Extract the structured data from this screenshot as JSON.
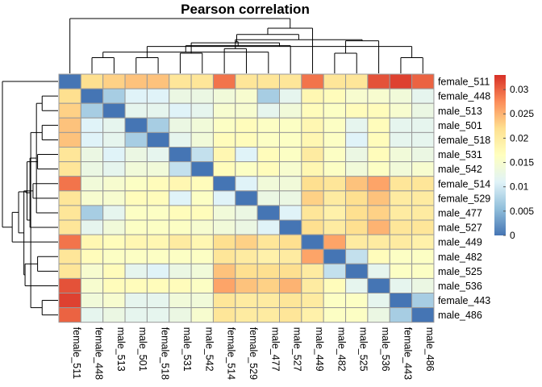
{
  "chart_data": {
    "type": "heatmap",
    "title": "Pearson correlation",
    "rows": [
      "female_511",
      "female_448",
      "male_513",
      "male_501",
      "female_518",
      "male_531",
      "male_542",
      "female_514",
      "female_529",
      "male_477",
      "male_527",
      "male_449",
      "male_482",
      "male_525",
      "male_536",
      "female_443",
      "male_486"
    ],
    "columns": [
      "female_511",
      "female_448",
      "male_513",
      "male_501",
      "female_518",
      "male_531",
      "male_542",
      "female_514",
      "female_529",
      "male_477",
      "male_527",
      "male_449",
      "male_482",
      "male_525",
      "male_536",
      "female_443",
      "male_486"
    ],
    "values": [
      [
        0.0,
        0.022,
        0.023,
        0.024,
        0.024,
        0.021,
        0.021,
        0.029,
        0.021,
        0.021,
        0.021,
        0.029,
        0.021,
        0.021,
        0.031,
        0.032,
        0.03
      ],
      [
        0.022,
        0.0,
        0.007,
        0.011,
        0.011,
        0.013,
        0.013,
        0.014,
        0.015,
        0.007,
        0.012,
        0.018,
        0.017,
        0.015,
        0.015,
        0.014,
        0.012
      ],
      [
        0.023,
        0.007,
        0.0,
        0.012,
        0.012,
        0.011,
        0.012,
        0.015,
        0.015,
        0.012,
        0.014,
        0.017,
        0.016,
        0.017,
        0.017,
        0.015,
        0.013
      ],
      [
        0.024,
        0.011,
        0.012,
        0.0,
        0.007,
        0.013,
        0.014,
        0.016,
        0.017,
        0.016,
        0.016,
        0.018,
        0.016,
        0.012,
        0.017,
        0.012,
        0.012
      ],
      [
        0.024,
        0.011,
        0.012,
        0.007,
        0.0,
        0.012,
        0.014,
        0.017,
        0.017,
        0.016,
        0.016,
        0.018,
        0.016,
        0.011,
        0.017,
        0.012,
        0.012
      ],
      [
        0.021,
        0.013,
        0.011,
        0.013,
        0.012,
        0.0,
        0.009,
        0.018,
        0.011,
        0.017,
        0.016,
        0.02,
        0.016,
        0.013,
        0.017,
        0.014,
        0.013
      ],
      [
        0.021,
        0.013,
        0.012,
        0.014,
        0.014,
        0.009,
        0.0,
        0.017,
        0.016,
        0.017,
        0.015,
        0.018,
        0.016,
        0.014,
        0.016,
        0.014,
        0.015
      ],
      [
        0.029,
        0.014,
        0.015,
        0.016,
        0.017,
        0.018,
        0.017,
        0.0,
        0.011,
        0.014,
        0.014,
        0.022,
        0.021,
        0.024,
        0.026,
        0.021,
        0.021
      ],
      [
        0.021,
        0.015,
        0.015,
        0.017,
        0.017,
        0.011,
        0.016,
        0.011,
        0.0,
        0.013,
        0.013,
        0.023,
        0.02,
        0.022,
        0.024,
        0.02,
        0.02
      ],
      [
        0.021,
        0.007,
        0.012,
        0.016,
        0.016,
        0.017,
        0.017,
        0.014,
        0.013,
        0.0,
        0.011,
        0.021,
        0.019,
        0.022,
        0.023,
        0.02,
        0.02
      ],
      [
        0.021,
        0.012,
        0.014,
        0.016,
        0.016,
        0.016,
        0.015,
        0.014,
        0.013,
        0.011,
        0.0,
        0.022,
        0.02,
        0.022,
        0.025,
        0.021,
        0.021
      ],
      [
        0.029,
        0.018,
        0.017,
        0.018,
        0.018,
        0.02,
        0.018,
        0.022,
        0.023,
        0.021,
        0.022,
        0.0,
        0.026,
        0.02,
        0.02,
        0.02,
        0.019
      ],
      [
        0.021,
        0.017,
        0.016,
        0.016,
        0.016,
        0.016,
        0.016,
        0.021,
        0.02,
        0.019,
        0.02,
        0.026,
        0.0,
        0.009,
        0.017,
        0.016,
        0.016
      ],
      [
        0.021,
        0.015,
        0.017,
        0.012,
        0.011,
        0.013,
        0.014,
        0.024,
        0.022,
        0.022,
        0.022,
        0.02,
        0.009,
        0.0,
        0.012,
        0.016,
        0.016
      ],
      [
        0.031,
        0.015,
        0.017,
        0.017,
        0.017,
        0.017,
        0.016,
        0.026,
        0.024,
        0.023,
        0.025,
        0.02,
        0.017,
        0.012,
        0.0,
        0.012,
        0.013
      ],
      [
        0.032,
        0.014,
        0.015,
        0.012,
        0.012,
        0.014,
        0.014,
        0.021,
        0.02,
        0.02,
        0.021,
        0.02,
        0.016,
        0.016,
        0.012,
        0.0,
        0.007
      ],
      [
        0.03,
        0.012,
        0.013,
        0.012,
        0.012,
        0.013,
        0.015,
        0.021,
        0.02,
        0.02,
        0.021,
        0.019,
        0.016,
        0.016,
        0.013,
        0.007,
        0.0
      ]
    ],
    "color_scale": {
      "min": 0,
      "max": 0.033,
      "colors": [
        "#4575B4",
        "#91BFDB",
        "#E0F3F8",
        "#FFFFBF",
        "#FEE090",
        "#FC8D59",
        "#D73027"
      ]
    },
    "legend": {
      "position": "right",
      "ticks": [
        0,
        0.005,
        0.01,
        0.015,
        0.02,
        0.025,
        0.03
      ],
      "tick_labels": [
        "0",
        "0.005",
        "0.01",
        "0.015",
        "0.02",
        "0.025",
        "0.03"
      ]
    },
    "dendrograms": [
      "top",
      "left"
    ],
    "cell_border_color": "#999999"
  }
}
